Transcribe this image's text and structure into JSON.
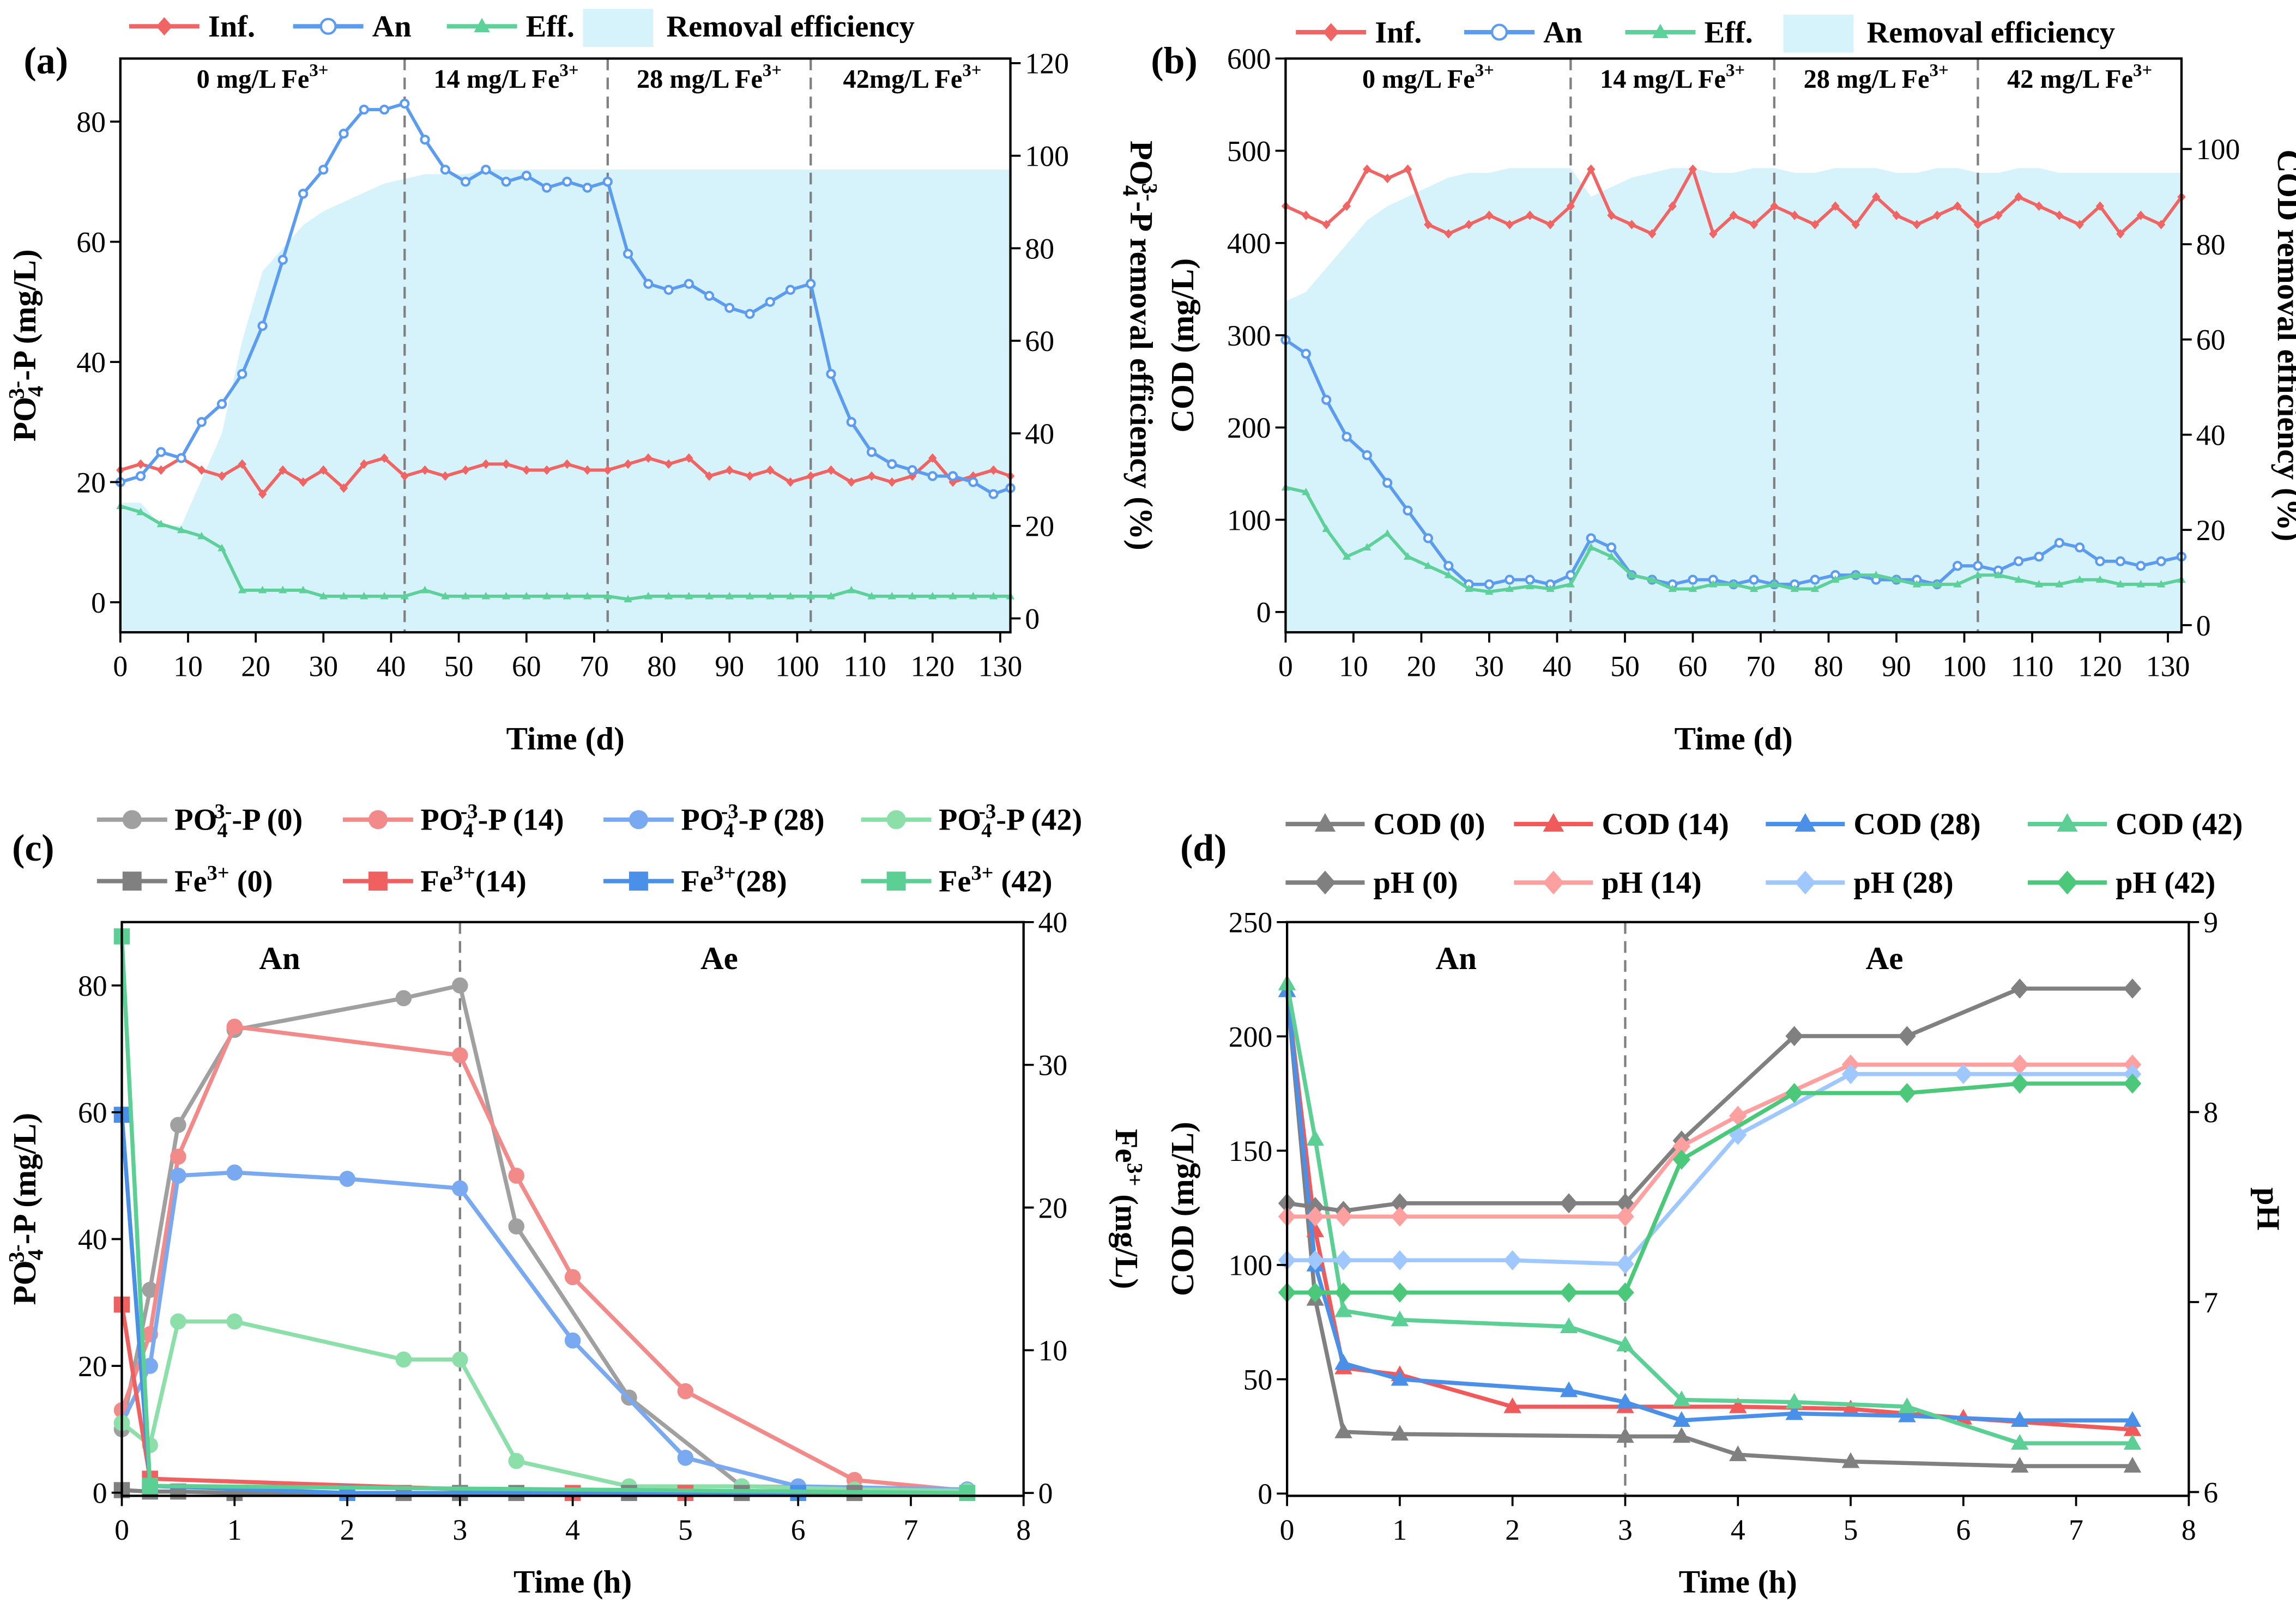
{
  "chart_data": [
    {
      "type": "line",
      "panel_label": "(a)",
      "xlabel": "Time (d)",
      "ylabel": "PO_{4}^{3-}-P  (mg/L)",
      "y2label": "PO_{4}^{3-}-P removal efficiency (%)",
      "xlim": [
        0,
        131.5
      ],
      "ylim": [
        -5,
        90.5
      ],
      "y2lim": [
        -3,
        121
      ],
      "xticks": [
        0,
        10,
        20,
        30,
        40,
        50,
        60,
        70,
        80,
        90,
        100,
        110,
        120,
        130
      ],
      "yticks": [
        0,
        20,
        40,
        60,
        80
      ],
      "y2ticks": [
        0,
        20,
        40,
        60,
        80,
        100,
        120
      ],
      "vlines": [
        42,
        72,
        102
      ],
      "annotations": [
        {
          "text": "0 mg/L Fe^{3+}",
          "x": 21
        },
        {
          "text": "14 mg/L Fe^{3+}",
          "x": 57
        },
        {
          "text": "28 mg/L Fe^{3+}",
          "x": 87
        },
        {
          "text": "42mg/L Fe^{3+}",
          "x": 117
        }
      ],
      "x": [
        0,
        3,
        6,
        9,
        12,
        15,
        18,
        21,
        24,
        27,
        30,
        33,
        36,
        39,
        42,
        45,
        48,
        51,
        54,
        57,
        60,
        63,
        66,
        69,
        72,
        75,
        78,
        81,
        84,
        87,
        90,
        93,
        96,
        99,
        102,
        105,
        108,
        111,
        114,
        117,
        120,
        123,
        126,
        129,
        132
      ],
      "series": [
        {
          "name": "Removal efficiency",
          "kind": "area",
          "axis": "right",
          "color": "#d6f3fb",
          "values": [
            25,
            25,
            20,
            20,
            30,
            40,
            60,
            75,
            80,
            85,
            88,
            90,
            92,
            94,
            95,
            96,
            96,
            96,
            97,
            97,
            97,
            97,
            97,
            97,
            97,
            97,
            97,
            97,
            97,
            97,
            97,
            97,
            97,
            97,
            97,
            97,
            97,
            97,
            97,
            97,
            97,
            97,
            97,
            97,
            97
          ]
        },
        {
          "name": "Inf.",
          "kind": "line",
          "axis": "left",
          "color": "#f06464",
          "marker": "diamond",
          "values": [
            22,
            23,
            22,
            24,
            22,
            21,
            23,
            18,
            22,
            20,
            22,
            19,
            23,
            24,
            21,
            22,
            21,
            22,
            23,
            23,
            22,
            22,
            23,
            22,
            22,
            23,
            24,
            23,
            24,
            21,
            22,
            21,
            22,
            20,
            21,
            22,
            20,
            21,
            20,
            21,
            24,
            20,
            21,
            22,
            21
          ]
        },
        {
          "name": "An",
          "kind": "line",
          "axis": "left",
          "color": "#5b9bf0",
          "marker": "ocircle",
          "values": [
            20,
            21,
            25,
            24,
            30,
            33,
            38,
            46,
            57,
            68,
            72,
            78,
            82,
            82,
            83,
            77,
            72,
            70,
            72,
            70,
            71,
            69,
            70,
            69,
            70,
            58,
            53,
            52,
            53,
            51,
            49,
            48,
            50,
            52,
            53,
            38,
            30,
            25,
            23,
            22,
            21,
            21,
            20,
            18,
            19
          ]
        },
        {
          "name": "Eff.",
          "kind": "line",
          "axis": "left",
          "color": "#5ed09a",
          "marker": "triangle",
          "values": [
            16,
            15,
            13,
            12,
            11,
            9,
            2,
            2,
            2,
            2,
            1,
            1,
            1,
            1,
            1,
            2,
            1,
            1,
            1,
            1,
            1,
            1,
            1,
            1,
            1,
            0.5,
            1,
            1,
            1,
            1,
            1,
            1,
            1,
            1,
            1,
            1,
            2,
            1,
            1,
            1,
            1,
            1,
            1,
            1,
            1
          ]
        }
      ]
    },
    {
      "type": "line",
      "panel_label": "(b)",
      "xlabel": "Time (d)",
      "ylabel": "COD (mg/L)",
      "y2label": "COD removal efficiency (%)",
      "xlim": [
        0,
        132
      ],
      "ylim": [
        -22,
        600
      ],
      "y2lim": [
        -1.5,
        119
      ],
      "xticks": [
        0,
        10,
        20,
        30,
        40,
        50,
        60,
        70,
        80,
        90,
        100,
        110,
        120,
        130
      ],
      "yticks": [
        0,
        100,
        200,
        300,
        400,
        500,
        600
      ],
      "y2ticks": [
        0,
        20,
        40,
        60,
        80,
        100
      ],
      "vlines": [
        42,
        72,
        102
      ],
      "annotations": [
        {
          "text": "0 mg/L Fe^{3+}",
          "x": 21
        },
        {
          "text": "14 mg/L Fe^{3+}",
          "x": 57
        },
        {
          "text": "28 mg/L Fe^{3+}",
          "x": 87
        },
        {
          "text": "42 mg/L Fe^{3+}",
          "x": 117
        }
      ],
      "x": [
        0,
        3,
        6,
        9,
        12,
        15,
        18,
        21,
        24,
        27,
        30,
        33,
        36,
        39,
        42,
        45,
        48,
        51,
        54,
        57,
        60,
        63,
        66,
        69,
        72,
        75,
        78,
        81,
        84,
        87,
        90,
        93,
        96,
        99,
        102,
        105,
        108,
        111,
        114,
        117,
        120,
        123,
        126,
        129,
        132
      ],
      "series": [
        {
          "name": "Removal efficiency",
          "kind": "area",
          "axis": "right",
          "color": "#d6f3fb",
          "values": [
            68,
            70,
            75,
            80,
            85,
            88,
            90,
            92,
            94,
            95,
            95,
            96,
            96,
            96,
            96,
            90,
            92,
            94,
            95,
            96,
            96,
            95,
            95,
            96,
            96,
            95,
            95,
            96,
            96,
            96,
            95,
            95,
            96,
            96,
            95,
            95,
            96,
            96,
            95,
            95,
            95,
            95,
            95,
            95,
            95
          ]
        },
        {
          "name": "Inf.",
          "kind": "line",
          "axis": "left",
          "color": "#f06464",
          "marker": "diamond",
          "values": [
            440,
            430,
            420,
            440,
            480,
            470,
            480,
            420,
            410,
            420,
            430,
            420,
            430,
            420,
            440,
            480,
            430,
            420,
            410,
            440,
            480,
            410,
            430,
            420,
            440,
            430,
            420,
            440,
            420,
            450,
            430,
            420,
            430,
            440,
            420,
            430,
            450,
            440,
            430,
            420,
            440,
            410,
            430,
            420,
            450
          ]
        },
        {
          "name": "An",
          "kind": "line",
          "axis": "left",
          "color": "#5b9bf0",
          "marker": "ocircle",
          "values": [
            295,
            280,
            230,
            190,
            170,
            140,
            110,
            80,
            50,
            30,
            30,
            35,
            35,
            30,
            40,
            80,
            70,
            40,
            35,
            30,
            35,
            35,
            30,
            35,
            30,
            30,
            35,
            40,
            40,
            35,
            35,
            35,
            30,
            50,
            50,
            45,
            55,
            60,
            75,
            70,
            55,
            55,
            50,
            55,
            60
          ]
        },
        {
          "name": "Eff.",
          "kind": "line",
          "axis": "left",
          "color": "#5ed09a",
          "marker": "triangle",
          "values": [
            135,
            130,
            90,
            60,
            70,
            85,
            60,
            50,
            40,
            25,
            22,
            25,
            28,
            25,
            30,
            70,
            60,
            40,
            35,
            25,
            25,
            30,
            30,
            25,
            30,
            25,
            25,
            35,
            40,
            40,
            35,
            30,
            30,
            30,
            40,
            40,
            35,
            30,
            30,
            35,
            35,
            30,
            30,
            30,
            35
          ]
        }
      ]
    },
    {
      "type": "line",
      "panel_label": "(c)",
      "xlabel": "Time (h)",
      "ylabel": "PO_{4}^{3-}-P (mg/L)",
      "y2label": "Fe^{3+} (mg/L)",
      "xlim": [
        0,
        8
      ],
      "ylim": [
        -0.5,
        90
      ],
      "y2lim": [
        -0.2,
        40
      ],
      "xticks": [
        0,
        1,
        2,
        3,
        4,
        5,
        6,
        7,
        8
      ],
      "yticks": [
        0,
        20,
        40,
        60,
        80
      ],
      "y2ticks": [
        0,
        10,
        20,
        30,
        40
      ],
      "vlines": [
        3
      ],
      "annotations": [
        {
          "text": "An",
          "x": 1.4
        },
        {
          "text": "Ae",
          "x": 5.3
        }
      ],
      "x": [
        0,
        0.25,
        0.5,
        1,
        2,
        2.5,
        3,
        3.5,
        4,
        4.5,
        5,
        5.5,
        6,
        6.5,
        7.5
      ],
      "series": [
        {
          "name": "PO_{4}^{3-}-P (0)",
          "axis": "left",
          "color": "#a0a0a0",
          "marker": "circle",
          "values": [
            10,
            32,
            58,
            73,
            null,
            78,
            80,
            42,
            null,
            15,
            null,
            1,
            null,
            null,
            0.5
          ]
        },
        {
          "name": "PO_{4}^{-3}-P (14)",
          "axis": "left",
          "color": "#f28a8a",
          "marker": "circle",
          "values": [
            13,
            25,
            53,
            73.5,
            null,
            null,
            69,
            50,
            34,
            null,
            16,
            null,
            null,
            2,
            0.3
          ]
        },
        {
          "name": "PO_{4}^{-3}-P (28)",
          "axis": "left",
          "color": "#79a9f0",
          "marker": "circle",
          "values": [
            11,
            20,
            50,
            50.5,
            49.5,
            null,
            48,
            null,
            24,
            null,
            5.5,
            null,
            1,
            null,
            0.5
          ]
        },
        {
          "name": "PO_{4}^{-3}-P (42)",
          "axis": "left",
          "color": "#8ddfaa",
          "marker": "circle",
          "values": [
            11,
            7.5,
            27,
            27,
            null,
            21,
            21,
            5,
            null,
            1,
            null,
            1,
            null,
            0.5,
            0.3
          ]
        },
        {
          "name": "Fe^{3+} (0)",
          "axis": "right",
          "color": "#808080",
          "marker": "square",
          "values": [
            0.2,
            0.1,
            0.1,
            0,
            null,
            0,
            0,
            0,
            null,
            0,
            null,
            0,
            null,
            0,
            0
          ]
        },
        {
          "name": "Fe^{3+}(14)",
          "axis": "right",
          "color": "#f06060",
          "marker": "square",
          "values": [
            13.2,
            1,
            null,
            null,
            null,
            null,
            null,
            null,
            0,
            null,
            0,
            null,
            null,
            null,
            null
          ]
        },
        {
          "name": "Fe^{3+}(28)",
          "axis": "right",
          "color": "#4a90e8",
          "marker": "square",
          "values": [
            26.5,
            0.5,
            null,
            null,
            0,
            null,
            null,
            null,
            null,
            null,
            null,
            null,
            0,
            null,
            null
          ]
        },
        {
          "name": "Fe^{3+} (42)",
          "axis": "right",
          "color": "#5cd094",
          "marker": "square",
          "values": [
            39,
            0.5,
            null,
            null,
            null,
            null,
            null,
            null,
            null,
            null,
            null,
            null,
            null,
            null,
            0
          ]
        }
      ]
    },
    {
      "type": "line",
      "panel_label": "(d)",
      "xlabel": "Time (h)",
      "ylabel": "COD (mg/L)",
      "y2label": "pH",
      "xlim": [
        0,
        8
      ],
      "ylim": [
        -1,
        250
      ],
      "y2lim": [
        5.98,
        9
      ],
      "xticks": [
        0,
        1,
        2,
        3,
        4,
        5,
        6,
        7,
        8
      ],
      "yticks": [
        0,
        50,
        100,
        150,
        200,
        250
      ],
      "y2ticks": [
        6,
        7,
        8,
        9
      ],
      "vlines": [
        3
      ],
      "annotations": [
        {
          "text": "An",
          "x": 1.5
        },
        {
          "text": "Ae",
          "x": 5.3
        }
      ],
      "x": [
        0,
        0.25,
        0.5,
        1,
        2,
        2.5,
        3,
        3.5,
        4,
        4.5,
        5,
        5.5,
        6,
        6.5,
        7.5
      ],
      "series": [
        {
          "name": "COD (0)",
          "axis": "left",
          "color": "#808080",
          "marker": "triangle",
          "values": [
            220,
            85,
            27,
            26,
            null,
            null,
            25,
            25,
            17,
            null,
            14,
            null,
            null,
            12,
            12
          ]
        },
        {
          "name": "COD (14)",
          "axis": "left",
          "color": "#f05a5a",
          "marker": "triangle",
          "values": [
            220,
            115,
            55,
            52,
            38,
            null,
            38,
            null,
            38,
            null,
            37,
            null,
            33,
            null,
            28
          ]
        },
        {
          "name": "COD (28)",
          "axis": "left",
          "color": "#4a90e8",
          "marker": "triangle",
          "values": [
            220,
            100,
            57,
            50,
            null,
            45,
            40,
            32,
            null,
            35,
            null,
            34,
            null,
            32,
            32
          ]
        },
        {
          "name": "COD (42)",
          "axis": "left",
          "color": "#5cd094",
          "marker": "triangle",
          "values": [
            223,
            155,
            80,
            76,
            null,
            73,
            65,
            41,
            null,
            40,
            null,
            38,
            null,
            22,
            22
          ]
        },
        {
          "name": "pH (0)",
          "axis": "right",
          "color": "#808080",
          "marker": "diamond",
          "values": [
            7.52,
            7.5,
            7.48,
            7.52,
            null,
            7.52,
            7.52,
            7.85,
            null,
            8.4,
            null,
            8.4,
            null,
            8.65,
            8.65
          ]
        },
        {
          "name": "pH (14)",
          "axis": "right",
          "color": "#ffa0a0",
          "marker": "diamond",
          "values": [
            7.45,
            7.45,
            7.45,
            7.45,
            null,
            null,
            7.45,
            7.82,
            7.98,
            null,
            8.25,
            null,
            null,
            8.25,
            8.25
          ]
        },
        {
          "name": "pH (28)",
          "axis": "right",
          "color": "#9ec8ff",
          "marker": "diamond",
          "values": [
            7.22,
            7.22,
            7.22,
            7.22,
            7.22,
            null,
            7.2,
            null,
            7.88,
            null,
            8.2,
            null,
            8.2,
            null,
            8.2
          ]
        },
        {
          "name": "pH (42)",
          "axis": "right",
          "color": "#4cc87a",
          "marker": "diamond",
          "values": [
            7.05,
            7.05,
            7.05,
            7.05,
            null,
            7.05,
            7.05,
            7.75,
            null,
            8.1,
            null,
            8.1,
            null,
            8.15,
            8.15
          ]
        }
      ]
    }
  ]
}
